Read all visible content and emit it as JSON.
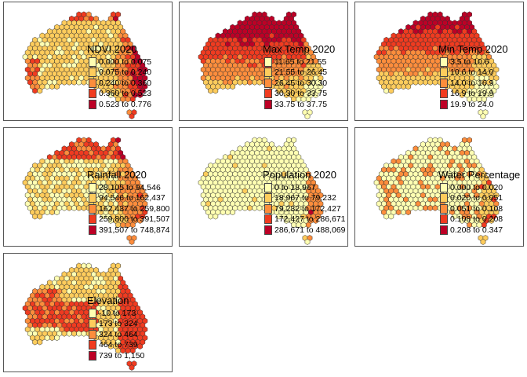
{
  "palette": [
    "#ffffb2",
    "#fecc5c",
    "#fd8d3c",
    "#f03b20",
    "#bd0026"
  ],
  "maps": [
    {
      "title": "NDVI 2020",
      "classes": [
        "0.000 to 0.075",
        "0.075 to 0.240",
        "0.240 to 0.360",
        "0.360 to 0.523",
        "0.523 to 0.776"
      ]
    },
    {
      "title": "Max Temp 2020",
      "classes": [
        "11.65 to 21.55",
        "21.55 to 26.45",
        "26.45 to 30.30",
        "30.30 to 33.75",
        "33.75 to 37.75"
      ]
    },
    {
      "title": "Min Temp 2020",
      "classes": [
        "3.5 to 10.6",
        "10.6 to 14.0",
        "14.0 to 16.9",
        "16.9 to 19.9",
        "19.9 to 24.0"
      ]
    },
    {
      "title": "Rainfall 2020",
      "classes": [
        "28,105 to 94,546",
        "94,546 to 162,437",
        "162,437 to 259,800",
        "259,800 to 391,507",
        "391,507 to 748,874"
      ]
    },
    {
      "title": "Population 2020",
      "classes": [
        "0 to 18,967",
        "18,967 to 79,232",
        "79,232 to 172,427",
        "172,427 to 286,671",
        "286,671 to 488,069"
      ]
    },
    {
      "title": "Water Percentage 2020",
      "classes": [
        "0.000 to 0.020",
        "0.020 to 0.051",
        "0.051 to 0.108",
        "0.108 to 0.208",
        "0.208 to 0.347"
      ]
    },
    {
      "title": "Elevation",
      "classes": [
        "-10 to 173",
        "173 to 324",
        "324 to 464",
        "464 to 739",
        "739 to 1,150"
      ]
    }
  ]
}
